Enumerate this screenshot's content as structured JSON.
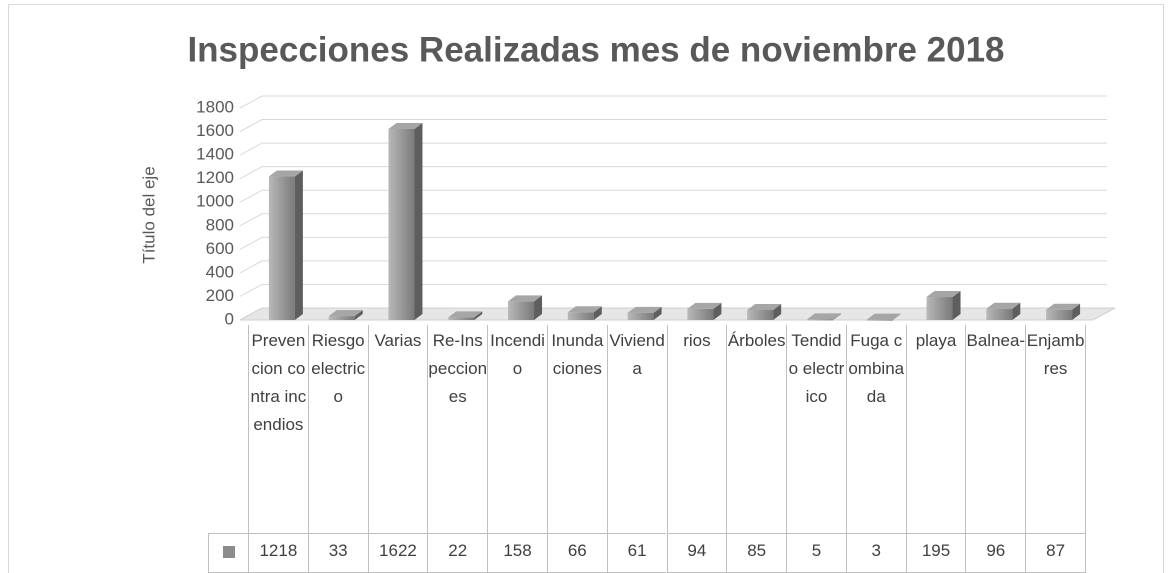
{
  "chart_data": {
    "type": "bar3d",
    "title": "Inspecciones Realizadas mes de noviembre 2018",
    "y_label": "Título del eje",
    "categories": [
      "Prevencion contra incendios",
      "Riesgo electrico",
      "Varias",
      "Re-Inspecciones",
      "Incendio",
      "Inundaciones",
      "Vivienda",
      "rios",
      "Árboles",
      "Tendido electrico",
      "Fuga combinada",
      "playa",
      "Balnea-",
      "Enjambres"
    ],
    "values": [
      1218,
      33,
      1622,
      22,
      158,
      66,
      61,
      94,
      85,
      5,
      3,
      195,
      96,
      87
    ],
    "color": "#8c8c8c",
    "ylim": [
      0,
      1800
    ],
    "yticks": [
      0,
      200,
      400,
      600,
      800,
      1000,
      1200,
      1400,
      1600,
      1800
    ],
    "grid": true,
    "data_table": true
  }
}
